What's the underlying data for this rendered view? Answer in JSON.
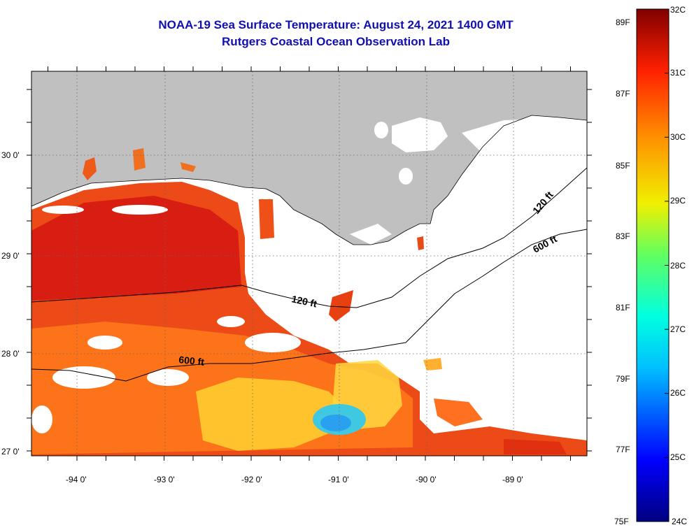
{
  "title": {
    "line1": "NOAA-19 Sea Surface Temperature:  August 24, 2021 1400 GMT",
    "line2": "Rutgers Coastal Ocean Observation Lab"
  },
  "axes": {
    "lon_ticks": [
      "-94 0'",
      "-93 0'",
      "-92 0'",
      "-91 0'",
      "-90 0'",
      "-89 0'"
    ],
    "lat_ticks": [
      "30 0'",
      "29 0'",
      "28 0'",
      "27 0'"
    ]
  },
  "contours": {
    "label_120_main": "120 ft",
    "label_600_main": "600 ft",
    "label_120_east": "120 ft",
    "label_600_east": "600 ft"
  },
  "colorbar": {
    "celsius": [
      "32C",
      "31C",
      "30C",
      "29C",
      "28C",
      "27C",
      "26C",
      "25C",
      "24C"
    ],
    "fahrenheit": [
      "89F",
      "87F",
      "85F",
      "83F",
      "81F",
      "79F",
      "77F",
      "75F"
    ]
  },
  "colors": {
    "land": "#c0c0c0",
    "title": "#1010b0",
    "warm": "#e83010",
    "hot": "#d01010",
    "orange": "#ff7010",
    "yellow": "#ffd020",
    "cyan": "#30c8e0"
  }
}
